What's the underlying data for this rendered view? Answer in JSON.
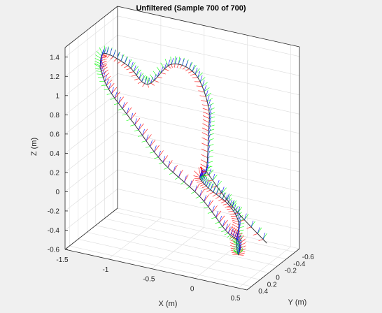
{
  "window": {
    "background": "#f0f0f0"
  },
  "chart_data": {
    "type": "line3d",
    "title": "Unfiltered (Sample 700 of 700)",
    "xlabel": "X (m)",
    "ylabel": "Y (m)",
    "zlabel": "Z (m)",
    "xlim": [
      -1.5,
      0.6
    ],
    "ylim": [
      -0.7,
      0.5
    ],
    "zlim": [
      -0.6,
      1.5
    ],
    "xticks": [
      -1.5,
      -1,
      -0.5,
      0,
      0.5
    ],
    "xtick_labels": [
      "-1.5",
      "-1",
      "-0.5",
      "0",
      "0.5"
    ],
    "yticks": [
      -0.6,
      -0.4,
      -0.2,
      0,
      0.2,
      0.4
    ],
    "ytick_labels": [
      "-0.6",
      "-0.4",
      "-0.2",
      "0",
      "0.2",
      "0.4"
    ],
    "zticks": [
      -0.6,
      -0.4,
      -0.2,
      0,
      0.2,
      0.4,
      0.6,
      0.8,
      1,
      1.2,
      1.4
    ],
    "ztick_labels": [
      "-0.6",
      "-0.4",
      "-0.2",
      "0",
      "0.2",
      "0.4",
      "0.6",
      "0.8",
      "1",
      "1.2",
      "1.4"
    ],
    "grid": true,
    "background": "#ffffff",
    "colors": {
      "x_axis_arrows": "#ff0000",
      "y_axis_arrows": "#00ff00",
      "z_axis_arrows": "#0000ff",
      "trajectory": "#3a3a3a"
    },
    "samples": 700,
    "trajectory_keypoints": [
      [
        -1.4,
        -0.1,
        1.1
      ],
      [
        -1.3,
        0.0,
        1.3
      ],
      [
        -1.0,
        0.05,
        1.25
      ],
      [
        -0.8,
        0.0,
        1.08
      ],
      [
        -0.55,
        -0.05,
        1.32
      ],
      [
        -0.3,
        -0.1,
        1.25
      ],
      [
        -0.2,
        -0.2,
        0.9
      ],
      [
        -0.25,
        -0.3,
        0.55
      ],
      [
        -0.3,
        -0.35,
        0.15
      ],
      [
        -0.4,
        -0.4,
        0.05
      ],
      [
        -0.2,
        -0.2,
        0.05
      ],
      [
        0.1,
        -0.05,
        0.0
      ],
      [
        0.35,
        0.2,
        -0.05
      ],
      [
        0.4,
        0.35,
        -0.2
      ],
      [
        0.45,
        0.4,
        -0.3
      ],
      [
        0.3,
        0.1,
        -0.3
      ],
      [
        0.0,
        -0.2,
        -0.35
      ],
      [
        -0.4,
        -0.4,
        -0.15
      ],
      [
        -0.9,
        -0.55,
        0.05
      ],
      [
        -1.2,
        -0.5,
        0.4
      ],
      [
        -1.4,
        -0.3,
        0.8
      ],
      [
        -1.4,
        -0.1,
        1.1
      ]
    ],
    "lower_tail": [
      [
        -0.3,
        -0.35,
        0.15
      ],
      [
        -0.05,
        -0.45,
        -0.2
      ],
      [
        0.3,
        -0.55,
        -0.55
      ]
    ]
  }
}
